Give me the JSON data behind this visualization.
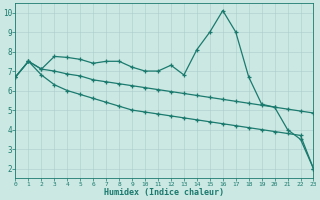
{
  "xlabel": "Humidex (Indice chaleur)",
  "background_color": "#cce8e3",
  "grid_color": "#aacccc",
  "line_color": "#1a7a6e",
  "xlim": [
    0,
    23
  ],
  "ylim": [
    1.5,
    10.5
  ],
  "x_ticks": [
    0,
    1,
    2,
    3,
    4,
    5,
    6,
    7,
    8,
    9,
    10,
    11,
    12,
    13,
    14,
    15,
    16,
    17,
    18,
    19,
    20,
    21,
    22,
    23
  ],
  "y_ticks": [
    2,
    3,
    4,
    5,
    6,
    7,
    8,
    9,
    10
  ],
  "line1_x": [
    0,
    1,
    2,
    3,
    4,
    5,
    6,
    7,
    8,
    9,
    10,
    11,
    12,
    13,
    14,
    15,
    16,
    17,
    18,
    19,
    20,
    21,
    22,
    23
  ],
  "line1_y": [
    6.7,
    7.5,
    7.1,
    7.75,
    7.7,
    7.6,
    7.4,
    7.5,
    7.5,
    7.2,
    7.0,
    7.0,
    7.3,
    6.8,
    8.1,
    9.0,
    10.1,
    9.0,
    6.7,
    5.3,
    5.15,
    4.0,
    3.5,
    2.0
  ],
  "line2_x": [
    0,
    1,
    2,
    3,
    4,
    5,
    6,
    7,
    8,
    9,
    10,
    11,
    12,
    13,
    14,
    15,
    16,
    17,
    18,
    19,
    20,
    21,
    22,
    23
  ],
  "line2_y": [
    6.7,
    7.5,
    7.1,
    7.0,
    6.85,
    6.75,
    6.55,
    6.45,
    6.35,
    6.25,
    6.15,
    6.05,
    5.95,
    5.85,
    5.75,
    5.65,
    5.55,
    5.45,
    5.35,
    5.25,
    5.15,
    5.05,
    4.95,
    4.85
  ],
  "line3_x": [
    0,
    1,
    2,
    3,
    4,
    5,
    6,
    7,
    8,
    9,
    10,
    11,
    12,
    13,
    14,
    15,
    16,
    17,
    18,
    19,
    20,
    21,
    22,
    23
  ],
  "line3_y": [
    6.7,
    7.5,
    6.8,
    6.3,
    6.0,
    5.8,
    5.6,
    5.4,
    5.2,
    5.0,
    4.9,
    4.8,
    4.7,
    4.6,
    4.5,
    4.4,
    4.3,
    4.2,
    4.1,
    4.0,
    3.9,
    3.8,
    3.7,
    2.0
  ]
}
